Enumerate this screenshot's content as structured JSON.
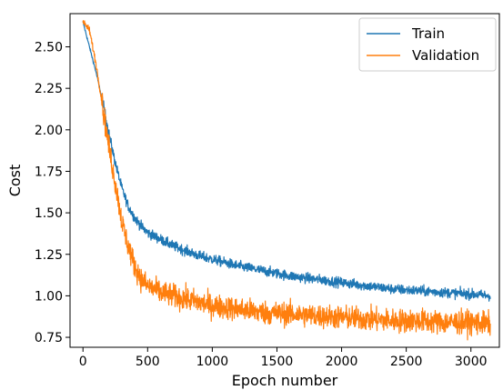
{
  "chart_data": {
    "type": "line",
    "title": "",
    "xlabel": "Epoch number",
    "ylabel": "Cost",
    "xlim": [
      -100,
      3220
    ],
    "ylim": [
      0.69,
      2.7
    ],
    "xticks": [
      0,
      500,
      1000,
      1500,
      2000,
      2500,
      3000
    ],
    "xtick_labels": [
      "0",
      "500",
      "1000",
      "1500",
      "2000",
      "2500",
      "3000"
    ],
    "yticks": [
      0.75,
      1.0,
      1.25,
      1.5,
      1.75,
      2.0,
      2.25,
      2.5
    ],
    "ytick_labels": [
      "0.75",
      "1.00",
      "1.25",
      "1.50",
      "1.75",
      "2.00",
      "2.25",
      "2.50"
    ],
    "grid": false,
    "legend_position": "top-right",
    "series": [
      {
        "name": "Train",
        "color": "#1f77b4",
        "x": [
          0,
          50,
          100,
          150,
          200,
          250,
          300,
          350,
          400,
          450,
          500,
          600,
          700,
          800,
          900,
          1000,
          1200,
          1400,
          1600,
          1800,
          2000,
          2200,
          2400,
          2600,
          2800,
          3000,
          3150
        ],
        "y": [
          2.65,
          2.5,
          2.35,
          2.18,
          1.98,
          1.8,
          1.65,
          1.54,
          1.47,
          1.42,
          1.38,
          1.34,
          1.3,
          1.27,
          1.24,
          1.22,
          1.18,
          1.15,
          1.12,
          1.1,
          1.08,
          1.06,
          1.04,
          1.03,
          1.02,
          1.01,
          1.0
        ],
        "noise": 0.015
      },
      {
        "name": "Validation",
        "color": "#ff7f0e",
        "x": [
          0,
          50,
          100,
          150,
          200,
          250,
          300,
          350,
          400,
          450,
          500,
          600,
          700,
          800,
          900,
          1000,
          1200,
          1400,
          1600,
          1800,
          2000,
          2200,
          2400,
          2600,
          2800,
          3000,
          3150
        ],
        "y": [
          2.65,
          2.6,
          2.4,
          2.15,
          1.9,
          1.68,
          1.45,
          1.3,
          1.18,
          1.1,
          1.06,
          1.02,
          1.0,
          0.98,
          0.96,
          0.94,
          0.92,
          0.9,
          0.89,
          0.88,
          0.87,
          0.86,
          0.85,
          0.85,
          0.84,
          0.84,
          0.83
        ],
        "noise": 0.035
      }
    ]
  }
}
